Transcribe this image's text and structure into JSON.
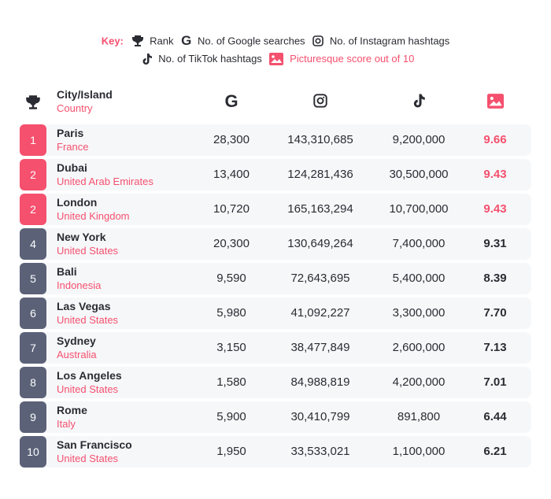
{
  "key": {
    "label": "Key:",
    "rank": "Rank",
    "google": "No. of Google searches",
    "instagram": "No. of Instagram hashtags",
    "tiktok": "No. of TikTok hashtags",
    "picturesque": "Picturesque score out of 10"
  },
  "header": {
    "city": "City/Island",
    "country": "Country"
  },
  "colors": {
    "pink": "#f5506e",
    "slate": "#5b6278"
  },
  "rows": [
    {
      "rank": "1",
      "city": "Paris",
      "country": "France",
      "google": "28,300",
      "instagram": "143,310,685",
      "tiktok": "9,200,000",
      "score": "9.66",
      "top": true
    },
    {
      "rank": "2",
      "city": "Dubai",
      "country": "United Arab Emirates",
      "google": "13,400",
      "instagram": "124,281,436",
      "tiktok": "30,500,000",
      "score": "9.43",
      "top": true
    },
    {
      "rank": "2",
      "city": "London",
      "country": "United Kingdom",
      "google": "10,720",
      "instagram": "165,163,294",
      "tiktok": "10,700,000",
      "score": "9.43",
      "top": true
    },
    {
      "rank": "4",
      "city": "New York",
      "country": "United States",
      "google": "20,300",
      "instagram": "130,649,264",
      "tiktok": "7,400,000",
      "score": "9.31",
      "top": false
    },
    {
      "rank": "5",
      "city": "Bali",
      "country": "Indonesia",
      "google": "9,590",
      "instagram": "72,643,695",
      "tiktok": "5,400,000",
      "score": "8.39",
      "top": false
    },
    {
      "rank": "6",
      "city": "Las Vegas",
      "country": "United States",
      "google": "5,980",
      "instagram": "41,092,227",
      "tiktok": "3,300,000",
      "score": "7.70",
      "top": false
    },
    {
      "rank": "7",
      "city": "Sydney",
      "country": "Australia",
      "google": "3,150",
      "instagram": "38,477,849",
      "tiktok": "2,600,000",
      "score": "7.13",
      "top": false
    },
    {
      "rank": "8",
      "city": "Los Angeles",
      "country": "United States",
      "google": "1,580",
      "instagram": "84,988,819",
      "tiktok": "4,200,000",
      "score": "7.01",
      "top": false
    },
    {
      "rank": "9",
      "city": "Rome",
      "country": "Italy",
      "google": "5,900",
      "instagram": "30,410,799",
      "tiktok": "891,800",
      "score": "6.44",
      "top": false
    },
    {
      "rank": "10",
      "city": "San Francisco",
      "country": "United States",
      "google": "1,950",
      "instagram": "33,533,021",
      "tiktok": "1,100,000",
      "score": "6.21",
      "top": false
    }
  ]
}
